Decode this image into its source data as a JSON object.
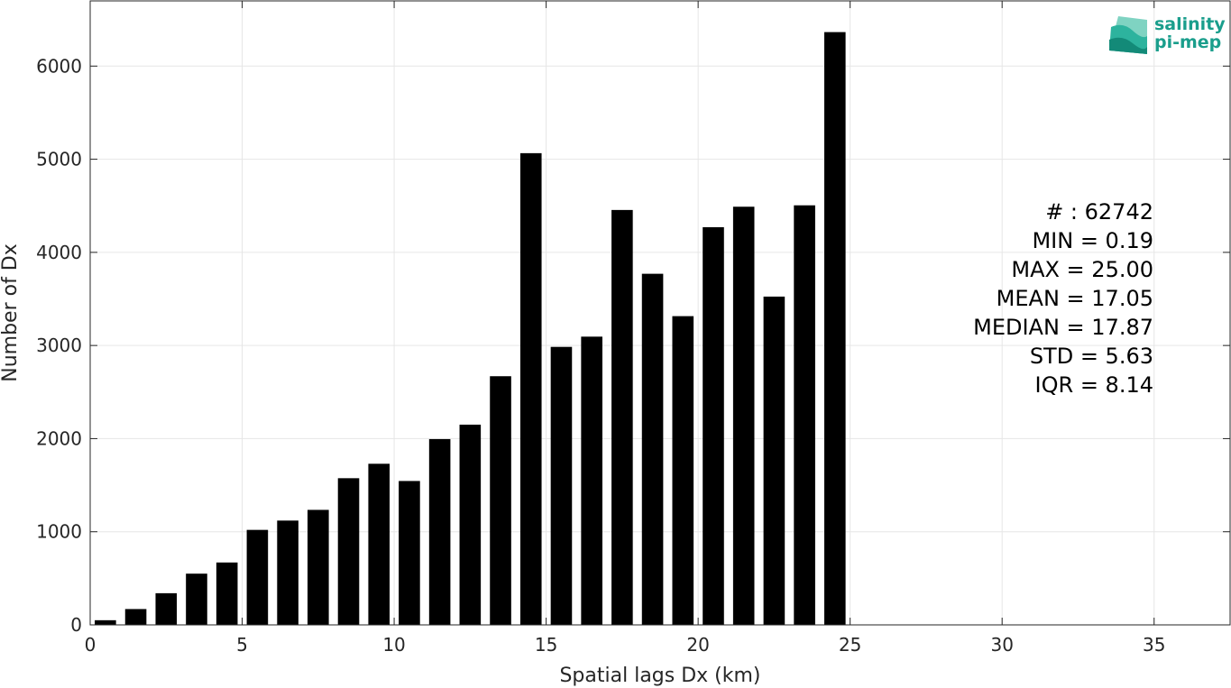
{
  "chart_data": {
    "type": "bar",
    "x": [
      0.5,
      1.5,
      2.5,
      3.5,
      4.5,
      5.5,
      6.5,
      7.5,
      8.5,
      9.5,
      10.5,
      11.5,
      12.5,
      13.5,
      14.5,
      15.5,
      16.5,
      17.5,
      18.5,
      19.5,
      20.5,
      21.5,
      22.5,
      23.5,
      24.5
    ],
    "values": [
      50,
      170,
      340,
      550,
      670,
      1020,
      1120,
      1235,
      1575,
      1730,
      1545,
      1995,
      2150,
      2670,
      5065,
      2985,
      3095,
      4455,
      3770,
      3315,
      4270,
      4490,
      3525,
      4505,
      6365
    ],
    "bar_width": 0.7,
    "title": "",
    "xlabel": "Spatial lags Dx (km)",
    "ylabel": "Number of Dx",
    "xlim": [
      0,
      37.5
    ],
    "ylim": [
      0,
      6700
    ],
    "xticks": [
      0,
      5,
      10,
      15,
      20,
      25,
      30,
      35
    ],
    "yticks": [
      0,
      1000,
      2000,
      3000,
      4000,
      5000,
      6000
    ],
    "xtick_labels": [
      "0",
      "5",
      "10",
      "15",
      "20",
      "25",
      "30",
      "35"
    ],
    "ytick_labels": [
      "0",
      "1000",
      "2000",
      "3000",
      "4000",
      "5000",
      "6000"
    ],
    "grid": true,
    "bar_color": "#000000",
    "stats": [
      "# : 62742",
      "MIN = 0.19",
      "MAX =  25.00",
      "MEAN = 17.05",
      "MEDIAN = 17.87",
      "STD = 5.63",
      "IQR = 8.14"
    ]
  },
  "logo": {
    "line1": "salinity",
    "line2": "pi-mep",
    "color": "#1a9e8c"
  }
}
